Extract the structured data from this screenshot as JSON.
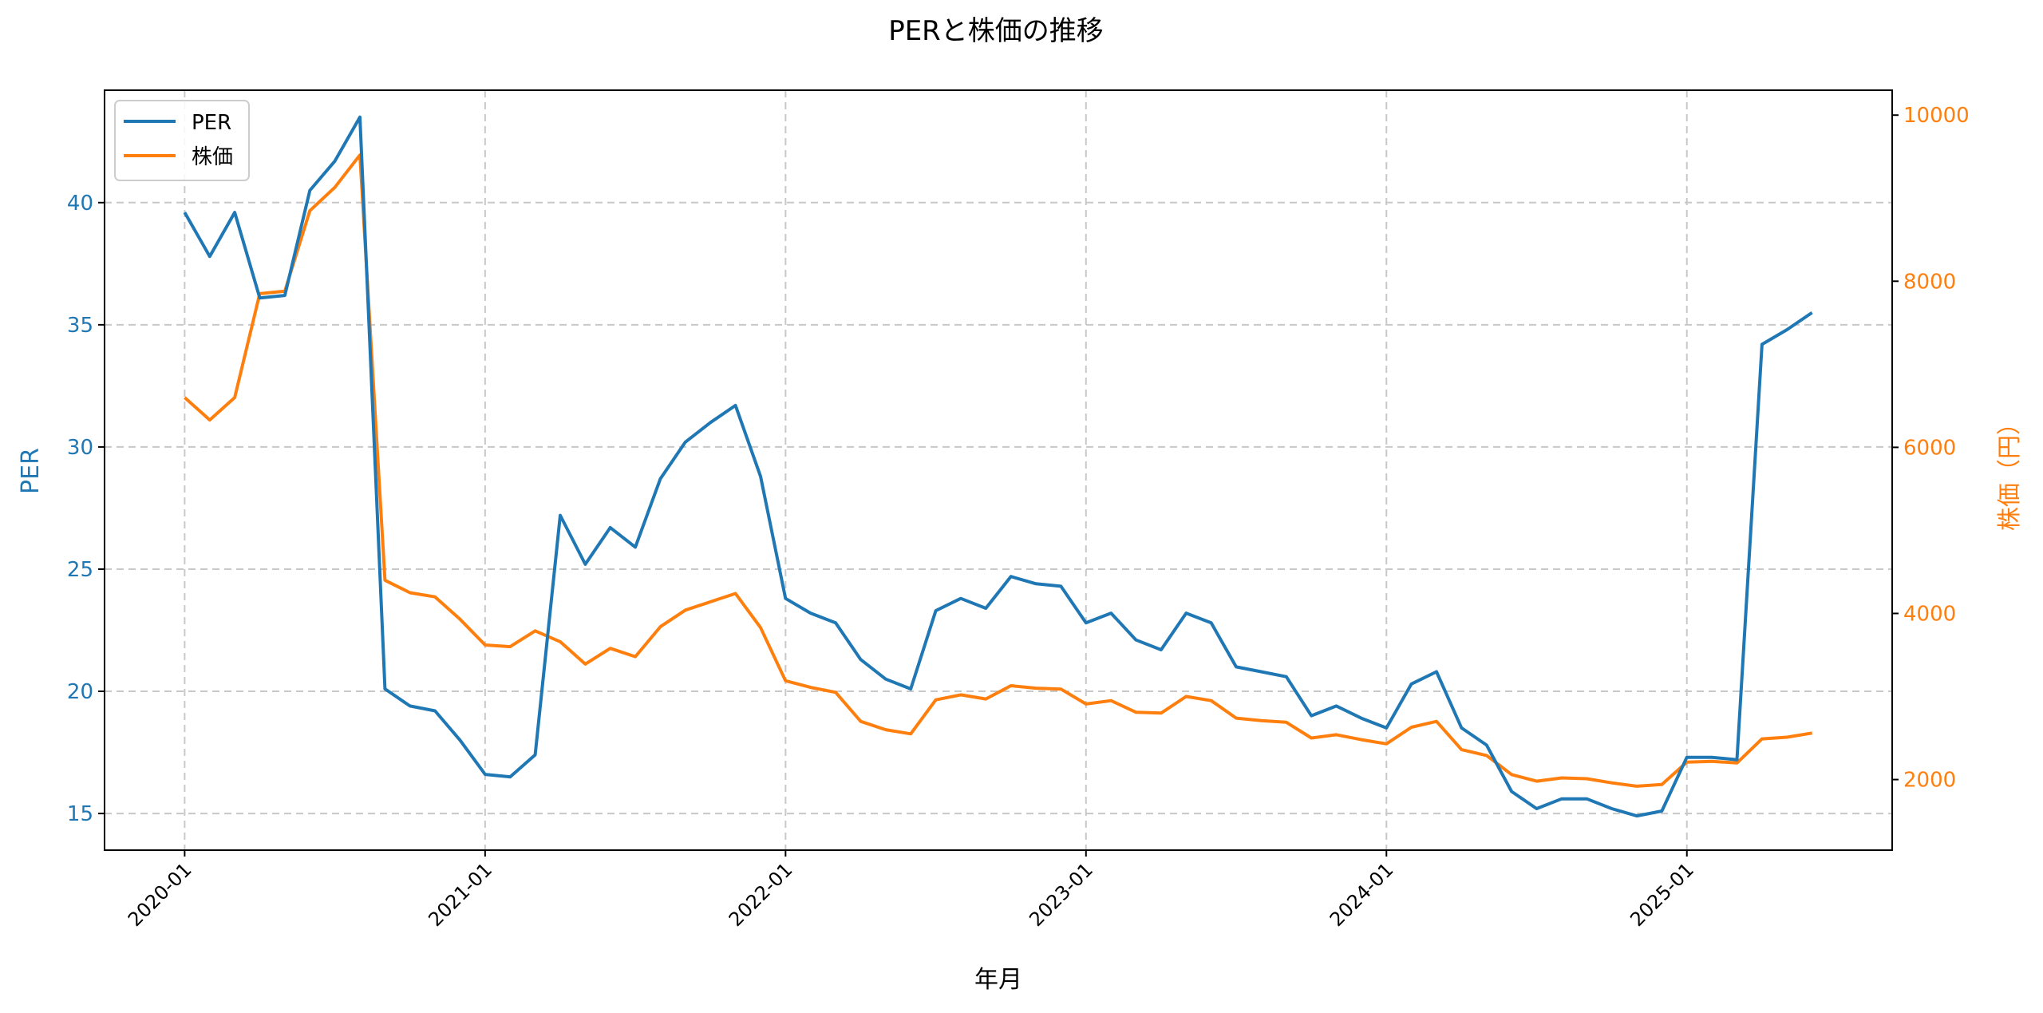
{
  "chart_data": {
    "type": "line",
    "title": "PERと株価の推移",
    "xlabel": "年月",
    "ylabel": "PER",
    "ylabel_right": "株価（円）",
    "x_tick_labels": [
      "2020-01",
      "2021-01",
      "2022-01",
      "2023-01",
      "2024-01",
      "2025-01"
    ],
    "x_start": "2020-01",
    "x_end": "2025-06",
    "x_frequency": "monthly",
    "y_ticks_left": [
      15,
      20,
      25,
      30,
      35,
      40
    ],
    "y_ticks_right": [
      2000,
      4000,
      6000,
      8000,
      10000
    ],
    "ylim_left": [
      13.5,
      44.6
    ],
    "ylim_right": [
      1150,
      10300
    ],
    "grid": true,
    "legend_position": "upper-left",
    "series": [
      {
        "name": "PER",
        "axis": "left",
        "color": "#1f77b4",
        "values": [
          39.6,
          37.8,
          39.6,
          36.1,
          36.2,
          40.5,
          41.7,
          43.5,
          20.1,
          19.4,
          19.2,
          18.0,
          16.6,
          16.5,
          17.4,
          27.2,
          25.2,
          26.7,
          25.9,
          28.7,
          30.2,
          31.0,
          31.7,
          28.8,
          23.8,
          23.2,
          22.8,
          21.3,
          20.5,
          20.1,
          23.3,
          23.8,
          23.4,
          24.7,
          24.4,
          24.3,
          22.8,
          23.2,
          22.1,
          21.7,
          23.2,
          22.8,
          21.0,
          20.8,
          20.6,
          19.0,
          19.4,
          18.9,
          18.5,
          20.3,
          20.8,
          18.5,
          17.8,
          15.9,
          15.2,
          15.6,
          15.6,
          15.2,
          14.9,
          15.1,
          17.3,
          17.3,
          17.2,
          34.2,
          34.8,
          35.5
        ]
      },
      {
        "name": "株価",
        "axis": "right",
        "color": "#ff7f0e",
        "values": [
          6600,
          6330,
          6600,
          7850,
          7880,
          8850,
          9130,
          9520,
          4400,
          4250,
          4200,
          3930,
          3620,
          3600,
          3790,
          3660,
          3390,
          3580,
          3480,
          3840,
          4040,
          4140,
          4240,
          3830,
          3190,
          3110,
          3050,
          2700,
          2600,
          2550,
          2960,
          3020,
          2970,
          3130,
          3100,
          3090,
          2910,
          2950,
          2810,
          2800,
          3000,
          2950,
          2740,
          2710,
          2690,
          2500,
          2540,
          2480,
          2430,
          2630,
          2700,
          2360,
          2290,
          2060,
          1980,
          2020,
          2010,
          1960,
          1920,
          1940,
          2210,
          2220,
          2200,
          2490,
          2510,
          2560
        ]
      }
    ]
  }
}
